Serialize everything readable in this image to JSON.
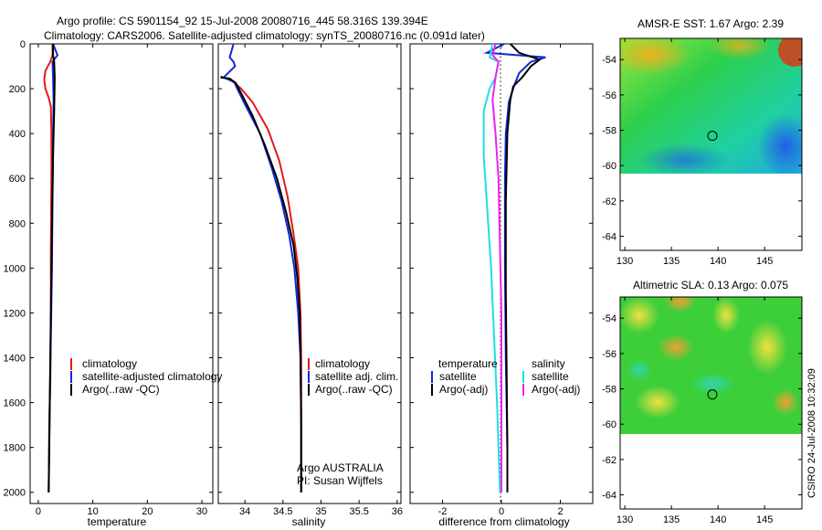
{
  "title": {
    "line1": "Argo profile: CS 5901154_92 15-Jul-2008 20080716_445 58.316S 139.394E",
    "line2": "Climatology: CARS2006. Satellite-adjusted climatology: synTS_20080716.nc (0.091d later)"
  },
  "colors": {
    "climatology": "#e0191e",
    "satellite": "#1028d8",
    "argo": "#000000",
    "sat_diff": "#22dede",
    "argo_diff": "#ee22ee"
  },
  "chart_data": [
    {
      "type": "line",
      "id": "temperature",
      "xlabel": "temperature",
      "xlim": [
        -1.5,
        32
      ],
      "ylim": [
        2050,
        0
      ],
      "xticks": [
        0,
        10,
        20,
        30
      ],
      "yticks": [
        0,
        200,
        400,
        600,
        800,
        1000,
        1200,
        1400,
        1600,
        1800,
        2000
      ],
      "legend": [
        "climatology",
        "satellite-adjusted climatology",
        "Argo(..raw -QC)"
      ],
      "series": [
        {
          "name": "climatology",
          "color": "#e0191e",
          "points": [
            [
              2.6,
              0
            ],
            [
              2.6,
              50
            ],
            [
              2.2,
              80
            ],
            [
              1.3,
              120
            ],
            [
              1.1,
              160
            ],
            [
              1.3,
              200
            ],
            [
              1.9,
              240
            ],
            [
              2.3,
              280
            ],
            [
              2.4,
              400
            ],
            [
              2.4,
              600
            ],
            [
              2.3,
              900
            ],
            [
              2.3,
              1200
            ],
            [
              2.2,
              1500
            ],
            [
              2.0,
              1700
            ],
            [
              1.9,
              2000
            ]
          ]
        },
        {
          "name": "satellite-adjusted climatology",
          "color": "#1028d8",
          "points": [
            [
              2.7,
              0
            ],
            [
              3.5,
              50
            ],
            [
              2.6,
              80
            ],
            [
              2.7,
              150
            ],
            [
              2.8,
              250
            ],
            [
              2.7,
              400
            ],
            [
              2.6,
              700
            ],
            [
              2.5,
              1000
            ],
            [
              2.3,
              1300
            ],
            [
              2.1,
              1600
            ],
            [
              1.9,
              2000
            ]
          ]
        },
        {
          "name": "Argo(..raw -QC)",
          "color": "#000000",
          "points": [
            [
              2.7,
              0
            ],
            [
              2.7,
              50
            ],
            [
              2.9,
              80
            ],
            [
              3.0,
              150
            ],
            [
              2.9,
              300
            ],
            [
              2.7,
              500
            ],
            [
              2.5,
              800
            ],
            [
              2.3,
              1200
            ],
            [
              2.1,
              1600
            ],
            [
              1.9,
              2000
            ]
          ]
        }
      ]
    },
    {
      "type": "line",
      "id": "salinity",
      "xlabel": "salinity",
      "xlim": [
        33.65,
        36.05
      ],
      "ylim": [
        2050,
        0
      ],
      "xticks": [
        34,
        34.5,
        35,
        35.5,
        36
      ],
      "legend": [
        "climatology",
        "satellite adj. clim.",
        "Argo(..raw -QC)"
      ],
      "annotations": [
        "Argo AUSTRALIA",
        "PI: Susan Wijffels"
      ],
      "series": [
        {
          "name": "climatology",
          "color": "#e0191e",
          "points": [
            [
              33.68,
              145
            ],
            [
              33.72,
              150
            ],
            [
              33.8,
              160
            ],
            [
              33.85,
              170
            ],
            [
              33.95,
              200
            ],
            [
              34.1,
              260
            ],
            [
              34.3,
              380
            ],
            [
              34.45,
              520
            ],
            [
              34.56,
              680
            ],
            [
              34.64,
              850
            ],
            [
              34.7,
              1000
            ],
            [
              34.73,
              1200
            ],
            [
              34.74,
              1400
            ],
            [
              34.74,
              1700
            ],
            [
              34.74,
              2000
            ]
          ]
        },
        {
          "name": "satellite adj. clim.",
          "color": "#1028d8",
          "points": [
            [
              33.85,
              0
            ],
            [
              33.8,
              60
            ],
            [
              33.85,
              80
            ],
            [
              33.87,
              100
            ],
            [
              33.72,
              150
            ],
            [
              33.86,
              170
            ],
            [
              33.9,
              200
            ],
            [
              34.0,
              270
            ],
            [
              34.2,
              400
            ],
            [
              34.35,
              550
            ],
            [
              34.48,
              700
            ],
            [
              34.58,
              850
            ],
            [
              34.65,
              1000
            ],
            [
              34.7,
              1200
            ],
            [
              34.73,
              1400
            ],
            [
              34.74,
              1700
            ],
            [
              34.74,
              2000
            ]
          ]
        },
        {
          "name": "Argo(..raw -QC)",
          "color": "#000000",
          "points": [
            [
              33.68,
              150
            ],
            [
              33.8,
              155
            ],
            [
              33.88,
              175
            ],
            [
              33.95,
              220
            ],
            [
              34.1,
              320
            ],
            [
              34.26,
              450
            ],
            [
              34.42,
              600
            ],
            [
              34.54,
              750
            ],
            [
              34.64,
              900
            ],
            [
              34.69,
              1050
            ],
            [
              34.72,
              1200
            ],
            [
              34.73,
              1400
            ],
            [
              34.74,
              1700
            ],
            [
              34.74,
              2000
            ]
          ]
        }
      ]
    },
    {
      "type": "line",
      "id": "difference",
      "xlabel": "difference from climatology",
      "xlim": [
        -3.1,
        3.1
      ],
      "ylim": [
        2050,
        0
      ],
      "xticks": [
        -2,
        0,
        2
      ],
      "legend_temperature_title": "temperature",
      "legend_salinity_title": "salinity",
      "legend_temperature": [
        "satellite",
        "Argo(-adj)"
      ],
      "legend_salinity": [
        "satellite",
        "Argo(-adj)"
      ],
      "series": [
        {
          "name": "temperature satellite",
          "color": "#1028d8",
          "points": [
            [
              0.1,
              0
            ],
            [
              -0.5,
              40
            ],
            [
              1.5,
              60
            ],
            [
              1.0,
              80
            ],
            [
              0.6,
              130
            ],
            [
              0.45,
              180
            ],
            [
              0.25,
              260
            ],
            [
              0.15,
              400
            ],
            [
              0.12,
              600
            ],
            [
              0.12,
              1000
            ],
            [
              0.15,
              1400
            ],
            [
              0.2,
              1800
            ],
            [
              0.2,
              2000
            ]
          ]
        },
        {
          "name": "temperature Argo(-adj)",
          "color": "#000000",
          "points": [
            [
              0.3,
              0
            ],
            [
              0.6,
              40
            ],
            [
              1.3,
              70
            ],
            [
              1.0,
              100
            ],
            [
              0.7,
              150
            ],
            [
              0.4,
              190
            ],
            [
              0.3,
              250
            ],
            [
              0.2,
              400
            ],
            [
              0.15,
              700
            ],
            [
              0.15,
              1100
            ],
            [
              0.18,
              1500
            ],
            [
              0.2,
              1800
            ],
            [
              0.2,
              2000
            ]
          ]
        },
        {
          "name": "salinity satellite",
          "color": "#22dede",
          "points": [
            [
              -0.3,
              0
            ],
            [
              -0.4,
              60
            ],
            [
              -0.1,
              80
            ],
            [
              -0.2,
              150
            ],
            [
              -0.4,
              200
            ],
            [
              -0.6,
              300
            ],
            [
              -0.6,
              500
            ],
            [
              -0.5,
              700
            ],
            [
              -0.35,
              1000
            ],
            [
              -0.25,
              1300
            ],
            [
              -0.15,
              1600
            ],
            [
              -0.05,
              2000
            ]
          ]
        },
        {
          "name": "salinity Argo(-adj)",
          "color": "#ee22ee",
          "points": [
            [
              -0.2,
              0
            ],
            [
              -0.3,
              50
            ],
            [
              -0.1,
              80
            ],
            [
              -0.2,
              150
            ],
            [
              -0.3,
              250
            ],
            [
              -0.2,
              400
            ],
            [
              -0.1,
              600
            ],
            [
              -0.05,
              900
            ],
            [
              0,
              1200
            ],
            [
              0,
              2000
            ]
          ]
        }
      ]
    },
    {
      "type": "heatmap",
      "id": "sst_map",
      "title": "AMSR-E SST: 1.67 Argo: 2.39",
      "xlim": [
        129.5,
        149
      ],
      "ylim": [
        -64.8,
        -52.8
      ],
      "xticks": [
        130,
        135,
        140,
        145
      ],
      "yticks": [
        -54,
        -56,
        -58,
        -60,
        -62,
        -64
      ],
      "data_lat_range": [
        -60,
        -52.8
      ],
      "marker": {
        "lon": 139.394,
        "lat": -58.316
      }
    },
    {
      "type": "heatmap",
      "id": "sla_map",
      "title": "Altimetric SLA: 0.13 Argo: 0.075",
      "xlim": [
        129.5,
        149
      ],
      "ylim": [
        -64.8,
        -52.8
      ],
      "xticks": [
        130,
        135,
        140,
        145
      ],
      "yticks": [
        -54,
        -56,
        -58,
        -60,
        -62,
        -64
      ],
      "data_lat_range": [
        -60,
        -52.8
      ],
      "marker": {
        "lon": 139.394,
        "lat": -58.316
      }
    }
  ],
  "footer": "CSIRO 24-Jul-2008 10:32:09"
}
